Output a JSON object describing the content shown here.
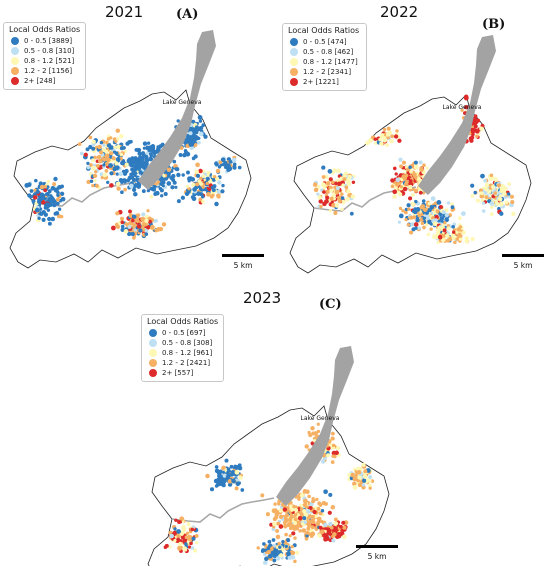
{
  "legend_title": "Local Odds Ratios",
  "lake_label": "Lake Geneva",
  "scale_label": "5 km",
  "category_colors": [
    "#2f7bbf",
    "#bfe0f2",
    "#fff8b5",
    "#f6b064",
    "#dd2a2a"
  ],
  "category_names": [
    "0 - 0.5",
    "0.5 - 0.8",
    "0.8 - 1.2",
    "1.2 - 2",
    "2+"
  ],
  "panels": [
    {
      "year": "2021",
      "letter": "(A)",
      "legend_items": [
        "0 - 0.5 [3889]",
        "0.5 - 0.8 [310]",
        "0.8 - 1.2 [521]",
        "1.2 - 2 [1156]",
        "2+ [248]"
      ]
    },
    {
      "year": "2022",
      "letter": "(B)",
      "legend_items": [
        "0 - 0.5 [474]",
        "0.5 - 0.8 [462]",
        "0.8 - 1.2 [1477]",
        "1.2 - 2 [2341]",
        "2+ [1221]"
      ]
    },
    {
      "year": "2023",
      "letter": "(C)",
      "legend_items": [
        "0 - 0.5 [697]",
        "0.5 - 0.8 [308]",
        "0.8 - 1.2 [961]",
        "1.2 - 2 [2421]",
        "2+ [557]"
      ]
    }
  ]
}
